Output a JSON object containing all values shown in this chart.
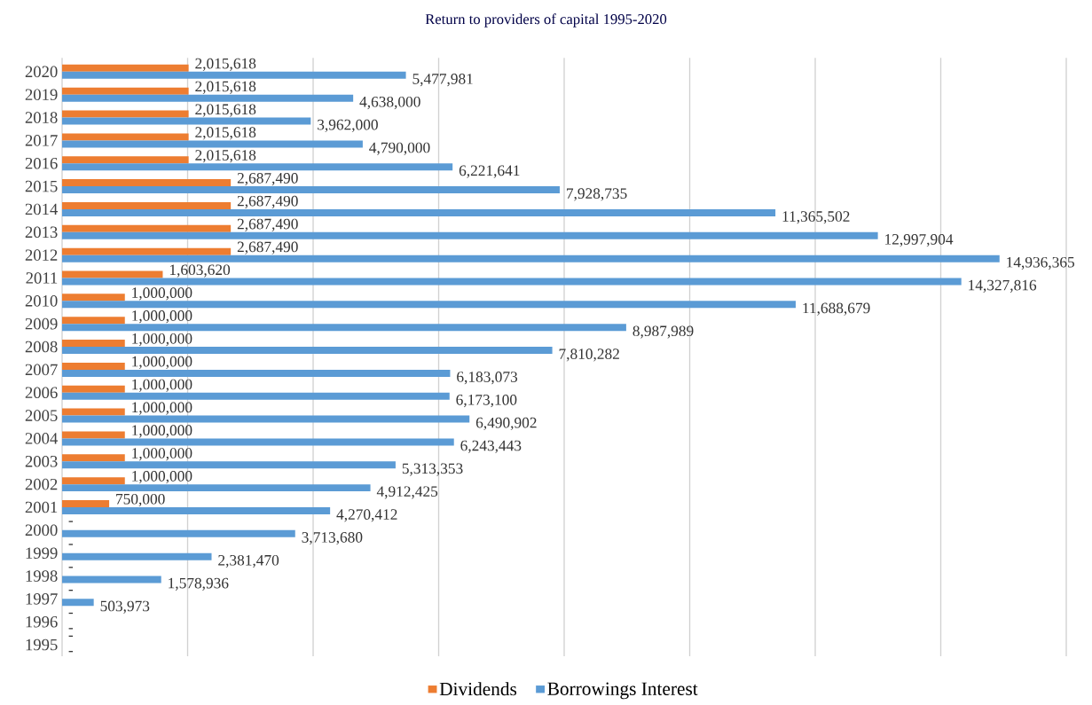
{
  "chart_data": {
    "type": "bar",
    "orientation": "horizontal",
    "title": "Return to providers of capital 1995-2020",
    "categories": [
      "2020",
      "2019",
      "2018",
      "2017",
      "2016",
      "2015",
      "2014",
      "2013",
      "2012",
      "2011",
      "2010",
      "2009",
      "2008",
      "2007",
      "2006",
      "2005",
      "2004",
      "2003",
      "2002",
      "2001",
      "2000",
      "1999",
      "1998",
      "1997",
      "1996",
      "1995"
    ],
    "series": [
      {
        "name": "Dividends",
        "color": "#ed7d31",
        "values": [
          2015618,
          2015618,
          2015618,
          2015618,
          2015618,
          2687490,
          2687490,
          2687490,
          2687490,
          1603620,
          1000000,
          1000000,
          1000000,
          1000000,
          1000000,
          1000000,
          1000000,
          1000000,
          1000000,
          750000,
          0,
          0,
          0,
          0,
          0,
          0
        ],
        "value_labels": [
          "2,015,618",
          "2,015,618",
          "2,015,618",
          "2,015,618",
          "2,015,618",
          "2,687,490",
          "2,687,490",
          "2,687,490",
          "2,687,490",
          "1,603,620",
          "1,000,000",
          "1,000,000",
          "1,000,000",
          "1,000,000",
          "1,000,000",
          "1,000,000",
          "1,000,000",
          "1,000,000",
          "1,000,000",
          "750,000",
          "-",
          "-",
          "-",
          "-",
          "-",
          "-"
        ]
      },
      {
        "name": "Borrowings Interest",
        "color": "#5b9bd5",
        "values": [
          5477981,
          4638000,
          3962000,
          4790000,
          6221641,
          7928735,
          11365502,
          12997904,
          14936365,
          14327816,
          11688679,
          8987989,
          7810282,
          6183073,
          6173100,
          6490902,
          6243443,
          5313353,
          4912425,
          4270412,
          3713680,
          2381470,
          1578936,
          503973,
          0,
          0
        ],
        "value_labels": [
          "5,477,981",
          "4,638,000",
          "3,962,000",
          "4,790,000",
          "6,221,641",
          "7,928,735",
          "11,365,502",
          "12,997,904",
          "14,936,365",
          "14,327,816",
          "11,688,679",
          "8,987,989",
          "7,810,282",
          "6,183,073",
          "6,173,100",
          "6,490,902",
          "6,243,443",
          "5,313,353",
          "4,912,425",
          "4,270,412",
          "3,713,680",
          "2,381,470",
          "1,578,936",
          "503,973",
          "-",
          "-"
        ]
      }
    ],
    "xlim": [
      0,
      16000000
    ],
    "xticks": [
      {
        "value": 0,
        "label": null
      },
      {
        "value": 2000000,
        "label": null
      },
      {
        "value": 4000000,
        "label": null
      },
      {
        "value": 6000000,
        "label": null
      },
      {
        "value": 8000000,
        "label": null
      },
      {
        "value": 10000000,
        "label": null
      },
      {
        "value": 12000000,
        "label": null
      },
      {
        "value": 14000000,
        "label": null
      },
      {
        "value": 16000000,
        "label": null
      }
    ],
    "tick_labels": "y",
    "grid": "x",
    "legend": "bottom"
  }
}
